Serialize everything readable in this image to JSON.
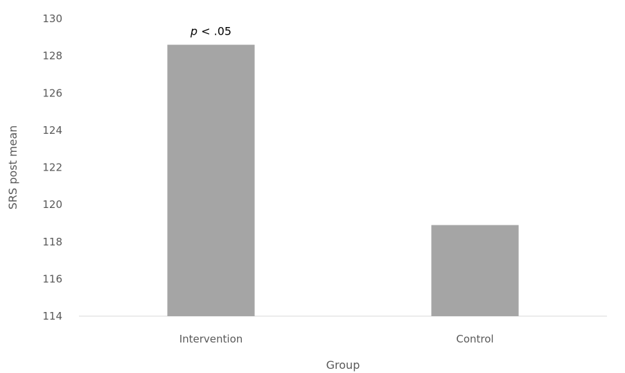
{
  "chart_data": {
    "type": "bar",
    "categories": [
      "Intervention",
      "Control"
    ],
    "values": [
      128.6,
      118.9
    ],
    "ylim": [
      114,
      130
    ],
    "yticks": [
      114,
      116,
      118,
      120,
      122,
      124,
      126,
      128,
      130
    ],
    "xlabel": "Group",
    "ylabel": "SRS post mean",
    "grid": false,
    "legend": "none",
    "bar_color": "#a5a5a5",
    "axis_color": "#d9d9d9",
    "text_color": "#595959",
    "annotations": [
      {
        "category": "Intervention",
        "italic_part": "p",
        "rest": " < .05"
      }
    ]
  }
}
